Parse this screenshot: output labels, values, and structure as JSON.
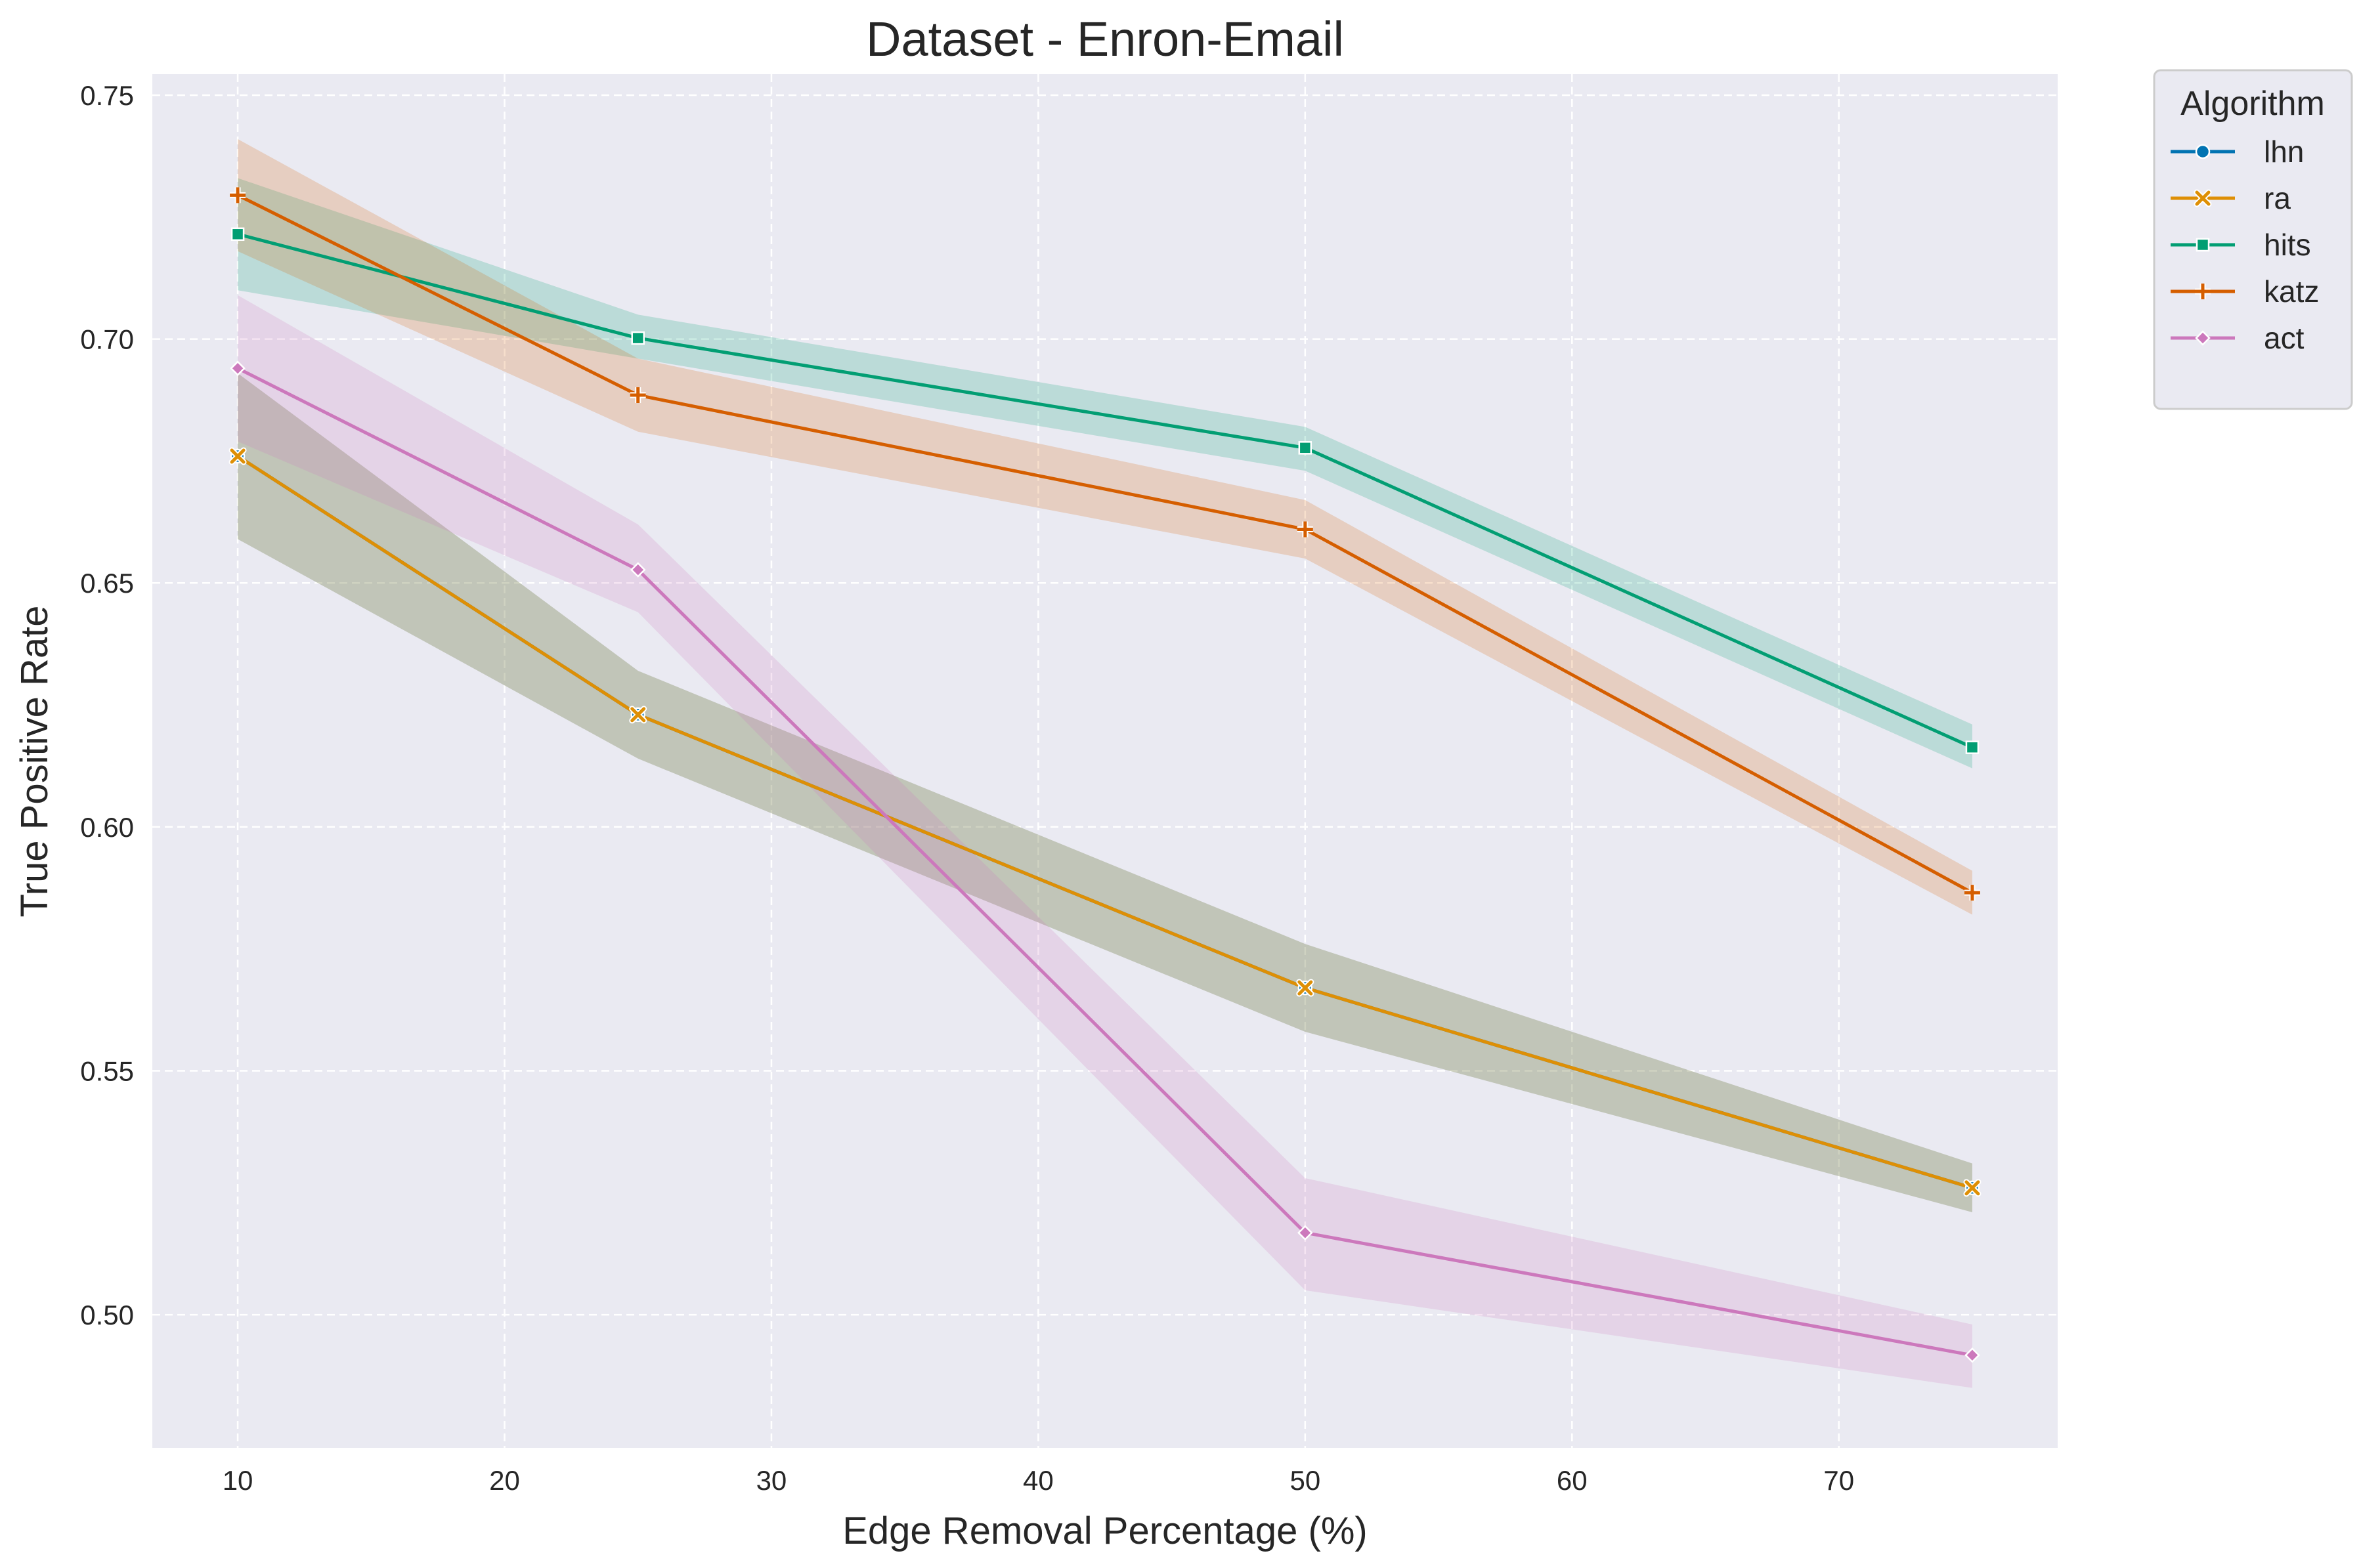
{
  "chart_data": {
    "type": "line",
    "title": "Dataset - Enron-Email",
    "xlabel": "Edge Removal Percentage (%)",
    "ylabel": "True Positive Rate",
    "xlim": [
      6.8,
      78.2
    ],
    "ylim": [
      0.4727,
      0.7543
    ],
    "x_ticks": [
      10,
      20,
      30,
      40,
      50,
      60,
      70
    ],
    "y_ticks": [
      0.5,
      0.55,
      0.6,
      0.65,
      0.7,
      0.75
    ],
    "x_tick_labels": [
      "10",
      "20",
      "30",
      "40",
      "50",
      "60",
      "70"
    ],
    "y_tick_labels": [
      "0.50",
      "0.55",
      "0.60",
      "0.65",
      "0.70",
      "0.75"
    ],
    "grid": true,
    "legend_position": "outside-top-right",
    "legend_title": "Algorithm",
    "x": [
      10,
      25,
      50,
      75
    ],
    "series": [
      {
        "name": "lhn",
        "color": "#0173b2",
        "marker": "circle",
        "values": [
          0.676,
          0.623,
          0.567,
          0.526
        ],
        "lower": [
          0.659,
          0.614,
          0.558,
          0.521
        ],
        "upper": [
          0.693,
          0.632,
          0.576,
          0.531
        ]
      },
      {
        "name": "ra",
        "color": "#de8f05",
        "marker": "x",
        "values": [
          0.676,
          0.623,
          0.567,
          0.526
        ],
        "lower": [
          0.659,
          0.614,
          0.558,
          0.521
        ],
        "upper": [
          0.693,
          0.632,
          0.576,
          0.531
        ]
      },
      {
        "name": "hits",
        "color": "#029e73",
        "marker": "square",
        "values": [
          0.7215,
          0.7002,
          0.6777,
          0.6163
        ],
        "lower": [
          0.71,
          0.696,
          0.673,
          0.612
        ],
        "upper": [
          0.733,
          0.705,
          0.682,
          0.621
        ]
      },
      {
        "name": "katz",
        "color": "#d55e00",
        "marker": "plus",
        "values": [
          0.7295,
          0.6885,
          0.661,
          0.5865
        ],
        "lower": [
          0.718,
          0.681,
          0.655,
          0.582
        ],
        "upper": [
          0.741,
          0.696,
          0.667,
          0.591
        ]
      },
      {
        "name": "act",
        "color": "#cc78bc",
        "marker": "diamond",
        "values": [
          0.694,
          0.6527,
          0.5168,
          0.4917
        ],
        "lower": [
          0.679,
          0.644,
          0.505,
          0.485
        ],
        "upper": [
          0.709,
          0.662,
          0.528,
          0.498
        ]
      }
    ],
    "colors": {
      "plot_background": "#eaeaf2",
      "grid": "#ffffff",
      "text": "#262626"
    }
  }
}
